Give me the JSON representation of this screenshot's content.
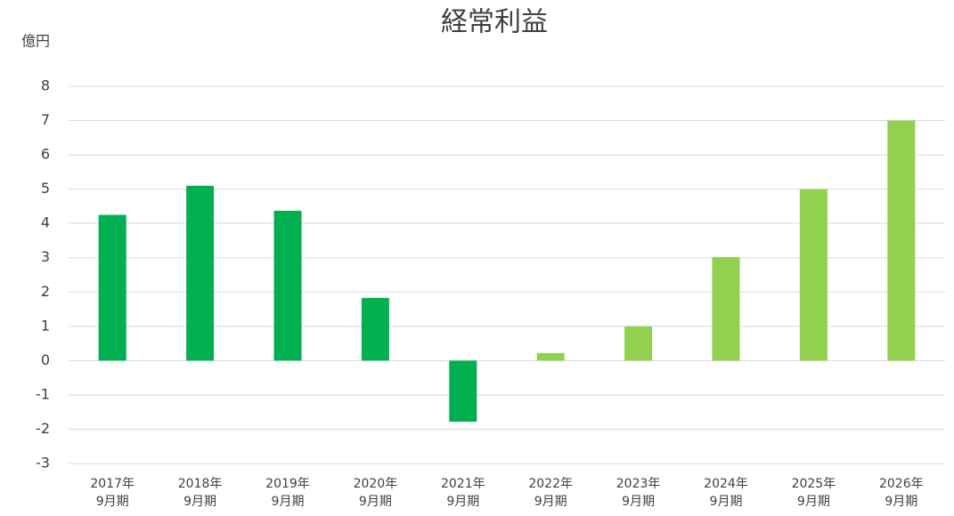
{
  "chart_data": {
    "type": "bar",
    "title": "経常利益",
    "y_axis_label": "億円",
    "categories": [
      "2017年\n9月期",
      "2018年\n9月期",
      "2019年\n9月期",
      "2020年\n9月期",
      "2021年\n9月期",
      "2022年\n9月期",
      "2023年\n9月期",
      "2024年\n9月期",
      "2025年\n9月期",
      "2026年\n9月期"
    ],
    "values": [
      4.25,
      5.1,
      4.37,
      1.83,
      -1.78,
      0.22,
      1.0,
      3.02,
      5.0,
      7.0
    ],
    "colors": [
      "#00b050",
      "#00b050",
      "#00b050",
      "#00b050",
      "#00b050",
      "#92d050",
      "#92d050",
      "#92d050",
      "#92d050",
      "#92d050"
    ],
    "ylim": [
      -3,
      8
    ],
    "yticks": [
      -3,
      -2,
      -1,
      0,
      1,
      2,
      3,
      4,
      5,
      6,
      7,
      8
    ],
    "grid": true
  }
}
